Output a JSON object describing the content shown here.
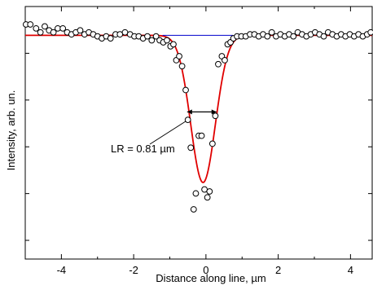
{
  "chart_data": {
    "type": "scatter",
    "xlabel": "Distance along line, µm",
    "ylabel": "Intensity, arb. un.",
    "xlim": [
      -5,
      4.6
    ],
    "ylim": [
      -0.18,
      1.09
    ],
    "x_ticks": [
      -4,
      -2,
      0,
      2,
      4
    ],
    "x_tick_labels": [
      "-4",
      "-2",
      "0",
      "2",
      "4"
    ],
    "grid": false,
    "legend": "none",
    "annotation": {
      "text": "LR = 0.81 µm",
      "arrow_from": [
        -0.52,
        0.56
      ],
      "arrow_to": [
        0.29,
        0.56
      ],
      "target_point": [
        -0.5,
        0.52
      ]
    },
    "series": [
      {
        "type": "scatter",
        "marker": "open-circle",
        "color": "#000000",
        "points": [
          [
            -4.98,
            1.0
          ],
          [
            -4.86,
            1.0
          ],
          [
            -4.7,
            0.98
          ],
          [
            -4.58,
            0.96
          ],
          [
            -4.46,
            0.99
          ],
          [
            -4.34,
            0.97
          ],
          [
            -4.22,
            0.96
          ],
          [
            -4.1,
            0.98
          ],
          [
            -3.96,
            0.98
          ],
          [
            -3.84,
            0.96
          ],
          [
            -3.72,
            0.95
          ],
          [
            -3.6,
            0.96
          ],
          [
            -3.48,
            0.97
          ],
          [
            -3.36,
            0.95
          ],
          [
            -3.24,
            0.96
          ],
          [
            -3.12,
            0.95
          ],
          [
            -3.0,
            0.94
          ],
          [
            -2.88,
            0.93
          ],
          [
            -2.76,
            0.94
          ],
          [
            -2.64,
            0.93
          ],
          [
            -2.5,
            0.95
          ],
          [
            -2.38,
            0.95
          ],
          [
            -2.24,
            0.96
          ],
          [
            -2.1,
            0.95
          ],
          [
            -1.98,
            0.94
          ],
          [
            -1.86,
            0.94
          ],
          [
            -1.74,
            0.93
          ],
          [
            -1.62,
            0.94
          ],
          [
            -1.5,
            0.92
          ],
          [
            -1.38,
            0.94
          ],
          [
            -1.28,
            0.92
          ],
          [
            -1.18,
            0.91
          ],
          [
            -1.08,
            0.92
          ],
          [
            -0.98,
            0.89
          ],
          [
            -0.9,
            0.9
          ],
          [
            -0.82,
            0.82
          ],
          [
            -0.74,
            0.84
          ],
          [
            -0.66,
            0.79
          ],
          [
            -0.56,
            0.67
          ],
          [
            -0.5,
            0.52
          ],
          [
            -0.42,
            0.38
          ],
          [
            -0.34,
            0.07
          ],
          [
            -0.28,
            0.15
          ],
          [
            -0.2,
            0.44
          ],
          [
            -0.12,
            0.44
          ],
          [
            -0.04,
            0.17
          ],
          [
            0.04,
            0.13
          ],
          [
            0.1,
            0.16
          ],
          [
            0.18,
            0.4
          ],
          [
            0.26,
            0.54
          ],
          [
            0.34,
            0.8
          ],
          [
            0.44,
            0.84
          ],
          [
            0.52,
            0.82
          ],
          [
            0.6,
            0.9
          ],
          [
            0.68,
            0.91
          ],
          [
            0.76,
            0.93
          ],
          [
            0.86,
            0.94
          ],
          [
            0.98,
            0.94
          ],
          [
            1.1,
            0.94
          ],
          [
            1.22,
            0.95
          ],
          [
            1.34,
            0.95
          ],
          [
            1.46,
            0.94
          ],
          [
            1.58,
            0.95
          ],
          [
            1.7,
            0.94
          ],
          [
            1.82,
            0.96
          ],
          [
            1.94,
            0.94
          ],
          [
            2.06,
            0.95
          ],
          [
            2.18,
            0.94
          ],
          [
            2.3,
            0.95
          ],
          [
            2.42,
            0.94
          ],
          [
            2.54,
            0.96
          ],
          [
            2.66,
            0.95
          ],
          [
            2.78,
            0.94
          ],
          [
            2.9,
            0.95
          ],
          [
            3.02,
            0.96
          ],
          [
            3.14,
            0.95
          ],
          [
            3.26,
            0.94
          ],
          [
            3.38,
            0.96
          ],
          [
            3.5,
            0.95
          ],
          [
            3.62,
            0.94
          ],
          [
            3.74,
            0.95
          ],
          [
            3.86,
            0.94
          ],
          [
            3.98,
            0.95
          ],
          [
            4.1,
            0.94
          ],
          [
            4.22,
            0.95
          ],
          [
            4.34,
            0.94
          ],
          [
            4.46,
            0.95
          ],
          [
            4.56,
            0.96
          ]
        ]
      },
      {
        "type": "line",
        "color": "#e00000",
        "model": "gaussian-fit",
        "baseline": 0.945,
        "amplitude": 0.74,
        "center": -0.08,
        "sigma": 0.34
      },
      {
        "type": "line",
        "color": "#0000cc",
        "points": [
          [
            -1.2,
            0.945
          ],
          [
            0.75,
            0.945
          ]
        ]
      }
    ]
  }
}
